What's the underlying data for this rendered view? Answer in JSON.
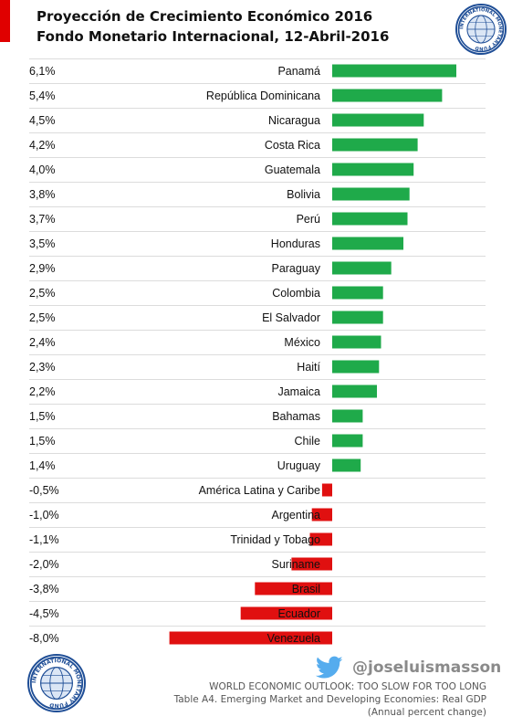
{
  "title_line1": "Proyección de Crecimiento Económico 2016",
  "title_line2": "Fondo Monetario Internacional,  12-Abril-2016",
  "twitter_handle": "@joseluismasson",
  "source_line1": "WORLD ECONOMIC OUTLOOK: TOO SLOW FOR TOO LONG",
  "source_line2": "Table A4. Emerging  Market and Developing Economies:  Real GDP",
  "source_line3": "(Annual percent change)",
  "logo_text": "INTERNATIONAL MONETARY FUND",
  "colors": {
    "accent_red": "#e00000",
    "positive": "#1faa4a",
    "negative": "#e01010",
    "logo_blue": "#1f4e96"
  },
  "chart_data": {
    "type": "bar",
    "orientation": "horizontal",
    "grid": true,
    "xlim": [
      -8.0,
      6.1
    ],
    "categories": [
      "Panamá",
      "República Dominicana",
      "Nicaragua",
      "Costa Rica",
      "Guatemala",
      "Bolivia",
      "Perú",
      "Honduras",
      "Paraguay",
      "Colombia",
      "El Salvador",
      "México",
      "Haití",
      "Jamaica",
      "Bahamas",
      "Chile",
      "Uruguay",
      "América Latina y Caribe",
      "Argentina",
      "Trinidad y Tobago",
      "Suriname",
      "Brasil",
      "Ecuador",
      "Venezuela"
    ],
    "values": [
      6.1,
      5.4,
      4.5,
      4.2,
      4.0,
      3.8,
      3.7,
      3.5,
      2.9,
      2.5,
      2.5,
      2.4,
      2.3,
      2.2,
      1.5,
      1.5,
      1.4,
      -0.5,
      -1.0,
      -1.1,
      -2.0,
      -3.8,
      -4.5,
      -8.0
    ],
    "value_labels": [
      "6,1%",
      "5,4%",
      "4,5%",
      "4,2%",
      "4,0%",
      "3,8%",
      "3,7%",
      "3,5%",
      "2,9%",
      "2,5%",
      "2,5%",
      "2,4%",
      "2,3%",
      "2,2%",
      "1,5%",
      "1,5%",
      "1,4%",
      "-0,5%",
      "-1,0%",
      "-1,1%",
      "-2,0%",
      "-3,8%",
      "-4,5%",
      "-8,0%"
    ]
  }
}
